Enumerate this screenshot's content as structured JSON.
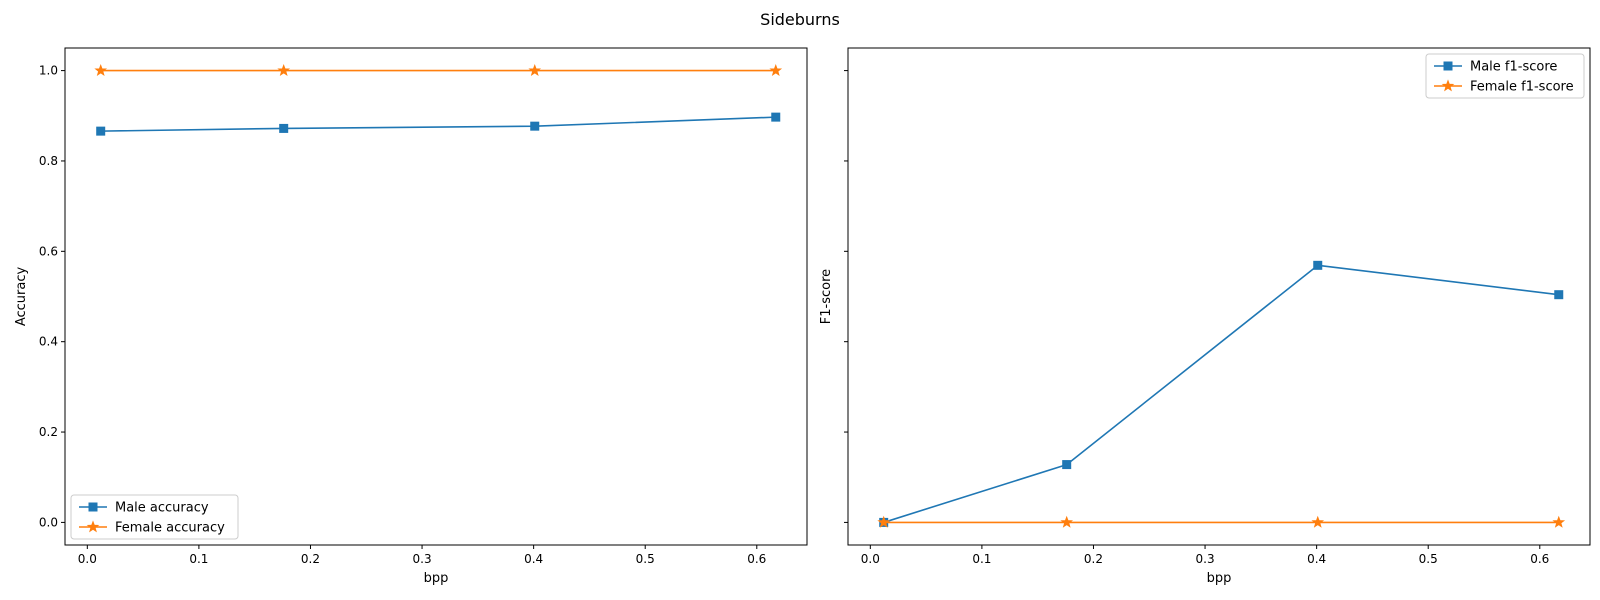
{
  "figure": {
    "title": "Sideburns"
  },
  "chart_data": [
    {
      "type": "line",
      "title": "",
      "xlabel": "bpp",
      "ylabel": "Accuracy",
      "xlim": [
        -0.02,
        0.645
      ],
      "ylim": [
        -0.05,
        1.05
      ],
      "xticks": [
        0.0,
        0.1,
        0.2,
        0.3,
        0.4,
        0.5,
        0.6
      ],
      "yticks": [
        0.0,
        0.2,
        0.4,
        0.6,
        0.8,
        1.0
      ],
      "xtick_labels": [
        "0.0",
        "0.1",
        "0.2",
        "0.3",
        "0.4",
        "0.5",
        "0.6"
      ],
      "ytick_labels": [
        "0.0",
        "0.2",
        "0.4",
        "0.6",
        "0.8",
        "1.0"
      ],
      "ytick_labels_visible": true,
      "grid": false,
      "legend_position": "lower-left",
      "series": [
        {
          "name": "Male accuracy",
          "color": "#1f77b4",
          "marker": "square",
          "x": [
            0.012,
            0.176,
            0.401,
            0.617
          ],
          "y": [
            0.866,
            0.872,
            0.877,
            0.897
          ]
        },
        {
          "name": "Female accuracy",
          "color": "#ff7f0e",
          "marker": "star",
          "x": [
            0.012,
            0.176,
            0.401,
            0.617
          ],
          "y": [
            1.0,
            1.0,
            1.0,
            1.0
          ]
        }
      ]
    },
    {
      "type": "line",
      "title": "",
      "xlabel": "bpp",
      "ylabel": "F1-score",
      "xlim": [
        -0.02,
        0.645
      ],
      "ylim": [
        -0.05,
        1.05
      ],
      "xticks": [
        0.0,
        0.1,
        0.2,
        0.3,
        0.4,
        0.5,
        0.6
      ],
      "yticks": [
        0.0,
        0.2,
        0.4,
        0.6,
        0.8,
        1.0
      ],
      "xtick_labels": [
        "0.0",
        "0.1",
        "0.2",
        "0.3",
        "0.4",
        "0.5",
        "0.6"
      ],
      "ytick_labels": [
        "0.0",
        "0.2",
        "0.4",
        "0.6",
        "0.8",
        "1.0"
      ],
      "ytick_labels_visible": false,
      "grid": false,
      "legend_position": "upper-right",
      "series": [
        {
          "name": "Male f1-score",
          "color": "#1f77b4",
          "marker": "square",
          "x": [
            0.012,
            0.176,
            0.401,
            0.617
          ],
          "y": [
            0.0,
            0.128,
            0.569,
            0.504
          ]
        },
        {
          "name": "Female f1-score",
          "color": "#ff7f0e",
          "marker": "star",
          "x": [
            0.012,
            0.176,
            0.401,
            0.617
          ],
          "y": [
            0.0,
            0.0,
            0.0,
            0.0
          ]
        }
      ]
    }
  ]
}
